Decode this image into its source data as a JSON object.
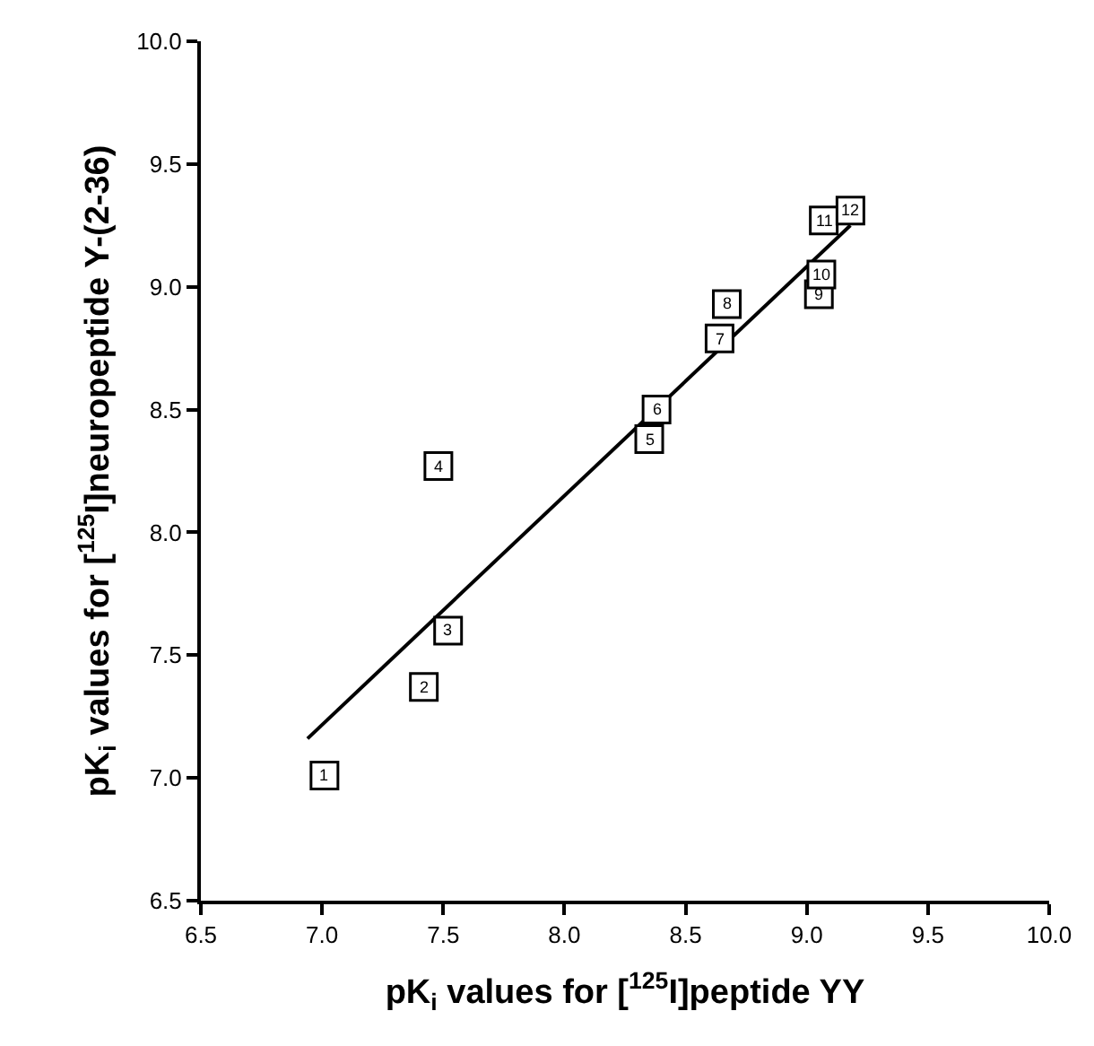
{
  "chart_data": {
    "type": "scatter",
    "xlabel": "pK$_{i}$ values for [$^{125}$I]peptide YY",
    "ylabel": "pK$_{i}$ values for [$^{125}$I]neuropeptide Y-(2-36)",
    "x": [
      7.01,
      7.42,
      7.52,
      7.48,
      8.35,
      8.38,
      8.64,
      8.67,
      9.05,
      9.06,
      9.07,
      9.18
    ],
    "series": [
      {
        "color": "#000000",
        "marker": "square",
        "values": [
          7.01,
          7.37,
          7.6,
          8.27,
          8.38,
          8.5,
          8.79,
          8.93,
          8.97,
          9.05,
          9.27,
          9.31
        ]
      },
      {
        "type": "line",
        "color": "#000000",
        "x": [
          6.94,
          9.18
        ],
        "values": [
          7.16,
          9.25
        ]
      }
    ],
    "annotations": [
      {
        "text": "1",
        "x": 7.01,
        "y": 7.01
      },
      {
        "text": "2",
        "x": 7.42,
        "y": 7.37
      },
      {
        "text": "3",
        "x": 7.52,
        "y": 7.6
      },
      {
        "text": "4",
        "x": 7.48,
        "y": 8.27
      },
      {
        "text": "5",
        "x": 8.35,
        "y": 8.38
      },
      {
        "text": "6",
        "x": 8.38,
        "y": 8.5
      },
      {
        "text": "7",
        "x": 8.64,
        "y": 8.79
      },
      {
        "text": "8",
        "x": 8.67,
        "y": 8.93
      },
      {
        "text": "9",
        "x": 9.05,
        "y": 8.97
      },
      {
        "text": "10",
        "x": 9.06,
        "y": 9.05
      },
      {
        "text": "11",
        "x": 9.07,
        "y": 9.27
      },
      {
        "text": "12",
        "x": 9.18,
        "y": 9.31
      }
    ],
    "xlim": [
      6.5,
      10.0
    ],
    "ylim": [
      6.5,
      10.0
    ],
    "xticks": [
      {
        "value": 6.5,
        "label": "6.5"
      },
      {
        "value": 7.0,
        "label": "7.0"
      },
      {
        "value": 7.5,
        "label": "7.5"
      },
      {
        "value": 8.0,
        "label": "8.0"
      },
      {
        "value": 8.5,
        "label": "8.5"
      },
      {
        "value": 9.0,
        "label": "9.0"
      },
      {
        "value": 9.5,
        "label": "9.5"
      },
      {
        "value": 10.0,
        "label": "10.0"
      }
    ],
    "yticks": [
      {
        "value": 6.5,
        "label": "6.5"
      },
      {
        "value": 7.0,
        "label": "7.0"
      },
      {
        "value": 7.5,
        "label": "7.5"
      },
      {
        "value": 8.0,
        "label": "8.0"
      },
      {
        "value": 8.5,
        "label": "8.5"
      },
      {
        "value": 9.0,
        "label": "9.0"
      },
      {
        "value": 9.5,
        "label": "9.5"
      },
      {
        "value": 10.0,
        "label": "10.0"
      }
    ]
  }
}
